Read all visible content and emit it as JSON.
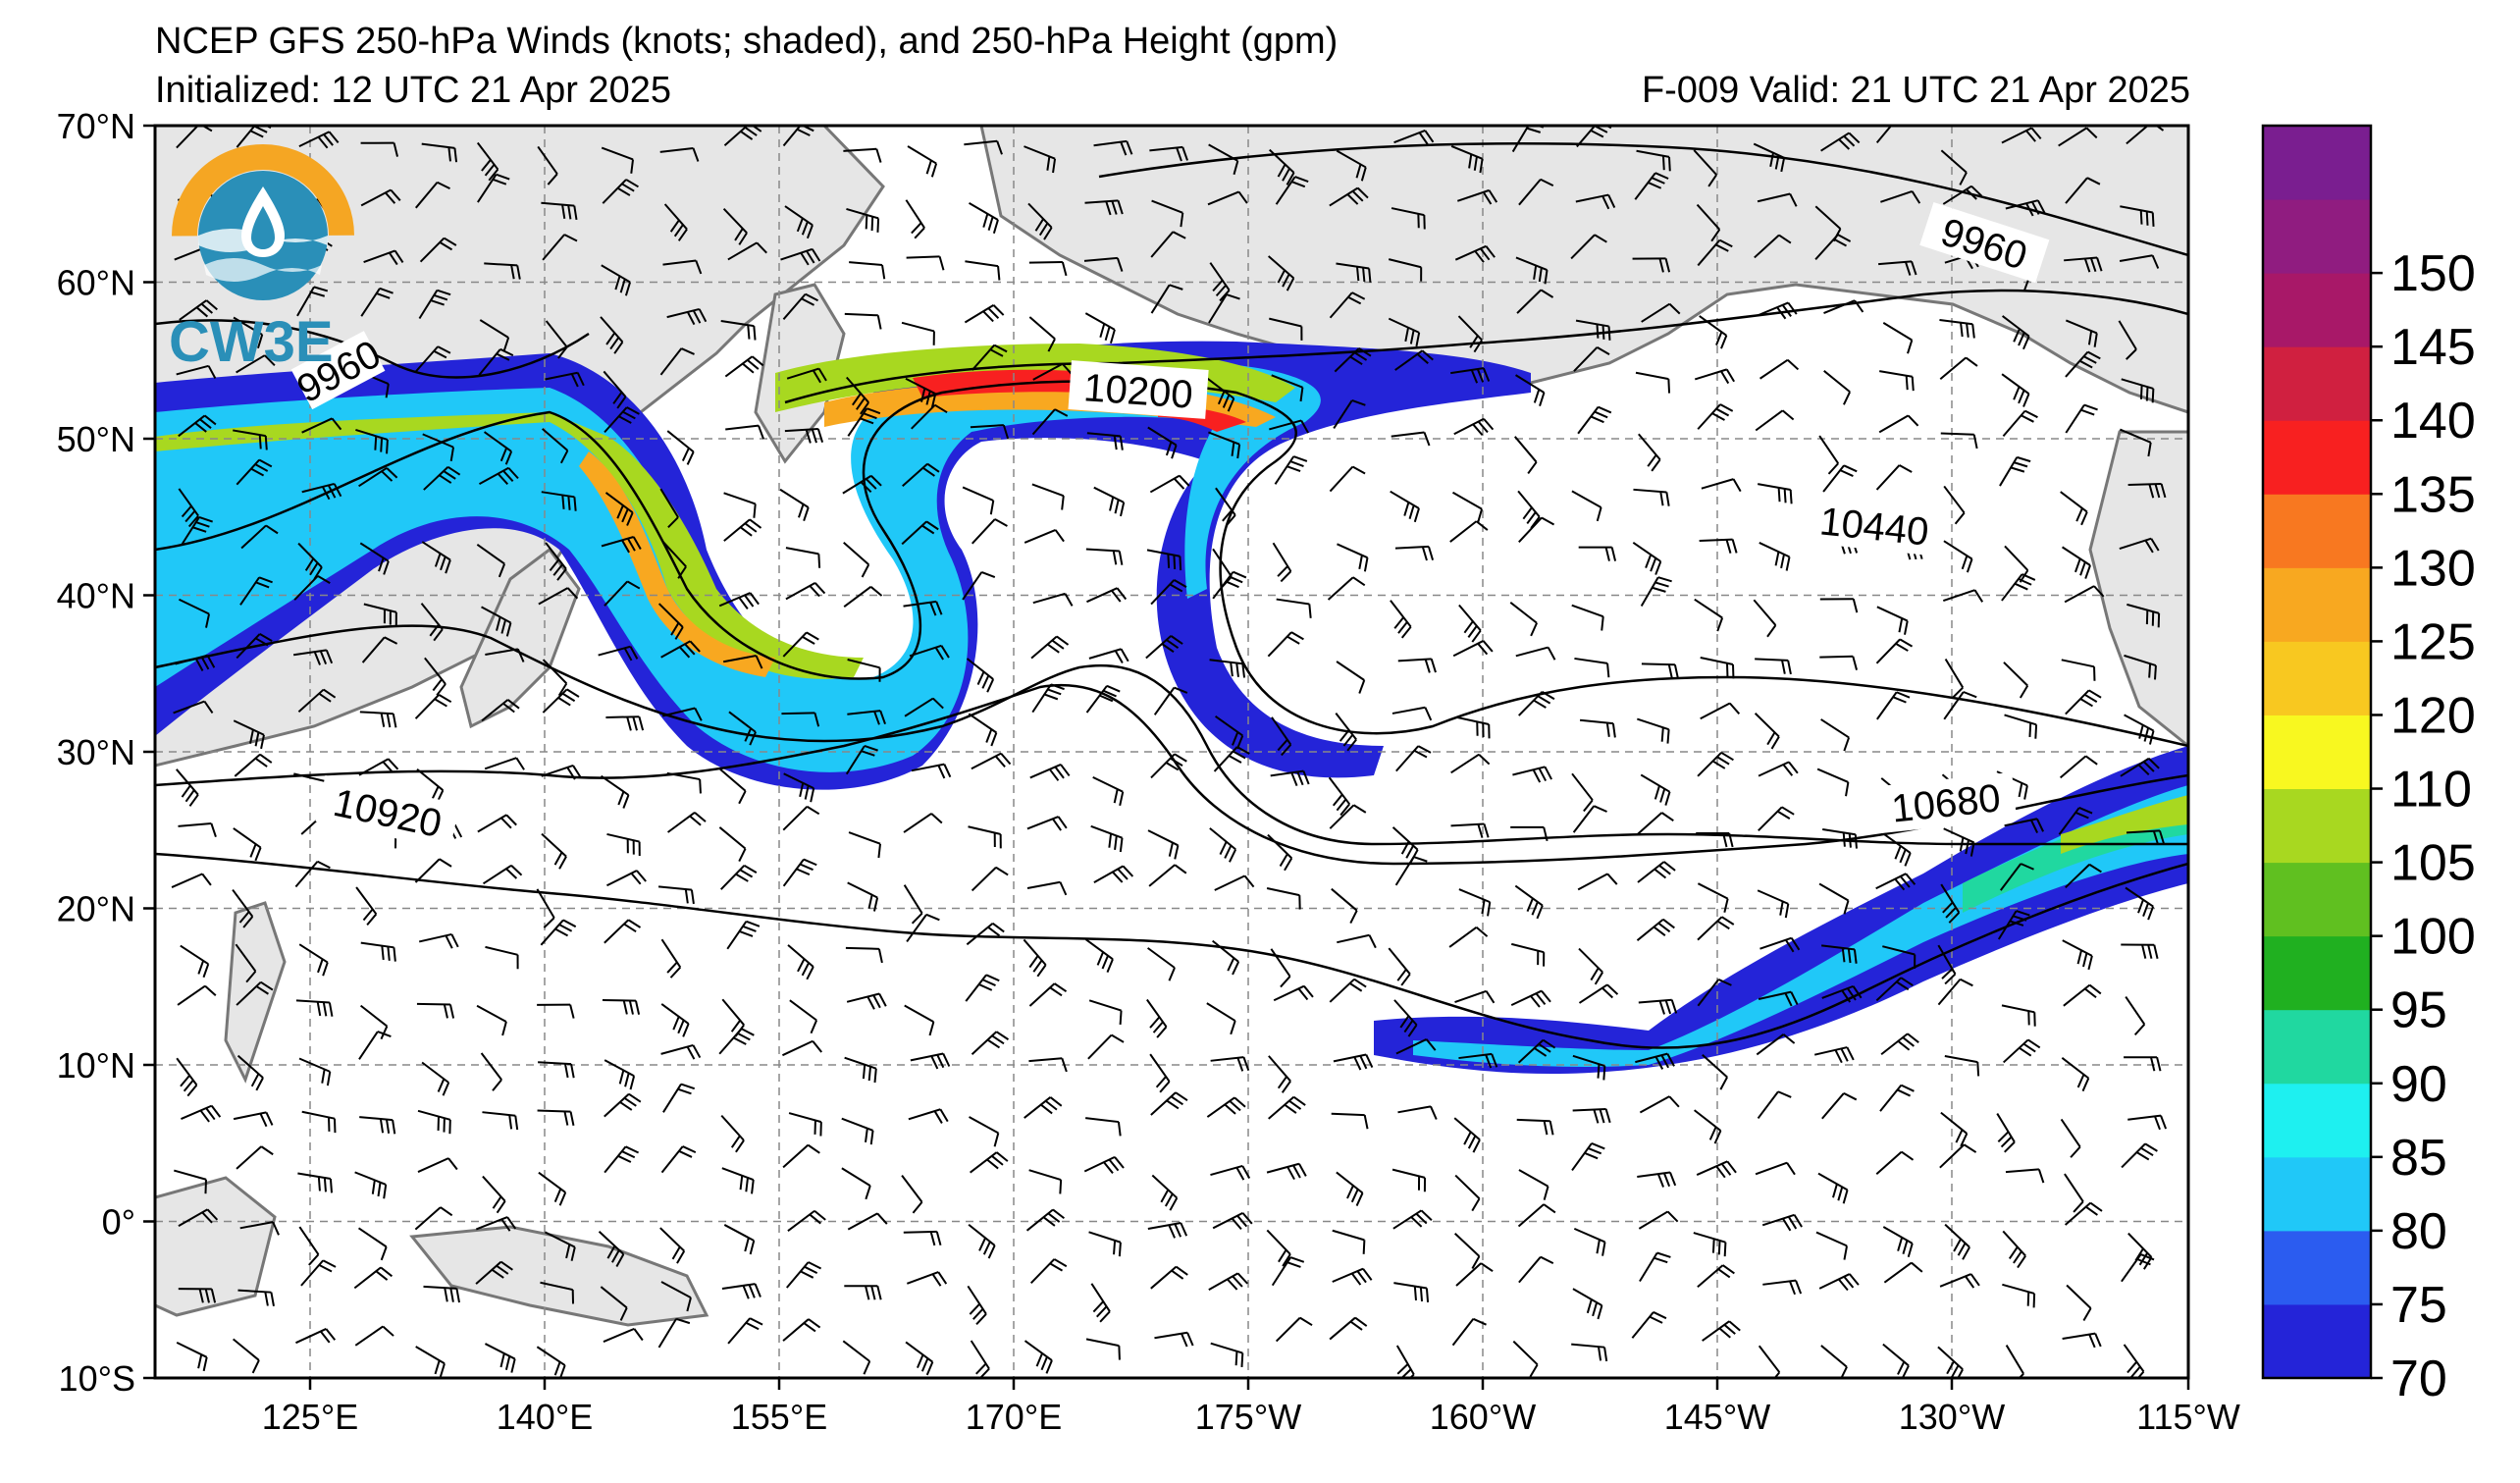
{
  "title": {
    "line1": "NCEP GFS 250-hPa Winds (knots; shaded), and 250-hPa Height (gpm)",
    "initialized": "Initialized: 12 UTC 21 Apr 2025",
    "valid": "F-009  Valid: 21 UTC 21 Apr 2025"
  },
  "logo": {
    "text": "CW3E",
    "icon": "cw3e-water-drop-logo"
  },
  "axes": {
    "lat_labels": [
      "70°N",
      "60°N",
      "50°N",
      "40°N",
      "30°N",
      "20°N",
      "10°N",
      "0°",
      "10°S"
    ],
    "lon_labels": [
      "125°E",
      "140°E",
      "155°E",
      "170°E",
      "175°W",
      "160°W",
      "145°W",
      "130°W",
      "115°W"
    ]
  },
  "colorbar": {
    "ticks": [
      "70",
      "75",
      "80",
      "85",
      "90",
      "95",
      "100",
      "105",
      "110",
      "120",
      "125",
      "130",
      "135",
      "140",
      "145",
      "150"
    ],
    "colors": [
      "#2424d8",
      "#2b5cf0",
      "#20c8f8",
      "#1ef0f0",
      "#20d8a0",
      "#20b020",
      "#60c020",
      "#a8d820",
      "#f8f820",
      "#f8c820",
      "#f8a820",
      "#f87820",
      "#f82020",
      "#d02040",
      "#a81868",
      "#901c80",
      "#7a1e90"
    ]
  },
  "contour_labels": [
    "9960",
    "9960",
    "10200",
    "10440",
    "10680",
    "10920"
  ],
  "colors": {
    "land": "#e6e6e6",
    "coast": "#777777",
    "grid": "#888888",
    "contour": "#000000"
  }
}
